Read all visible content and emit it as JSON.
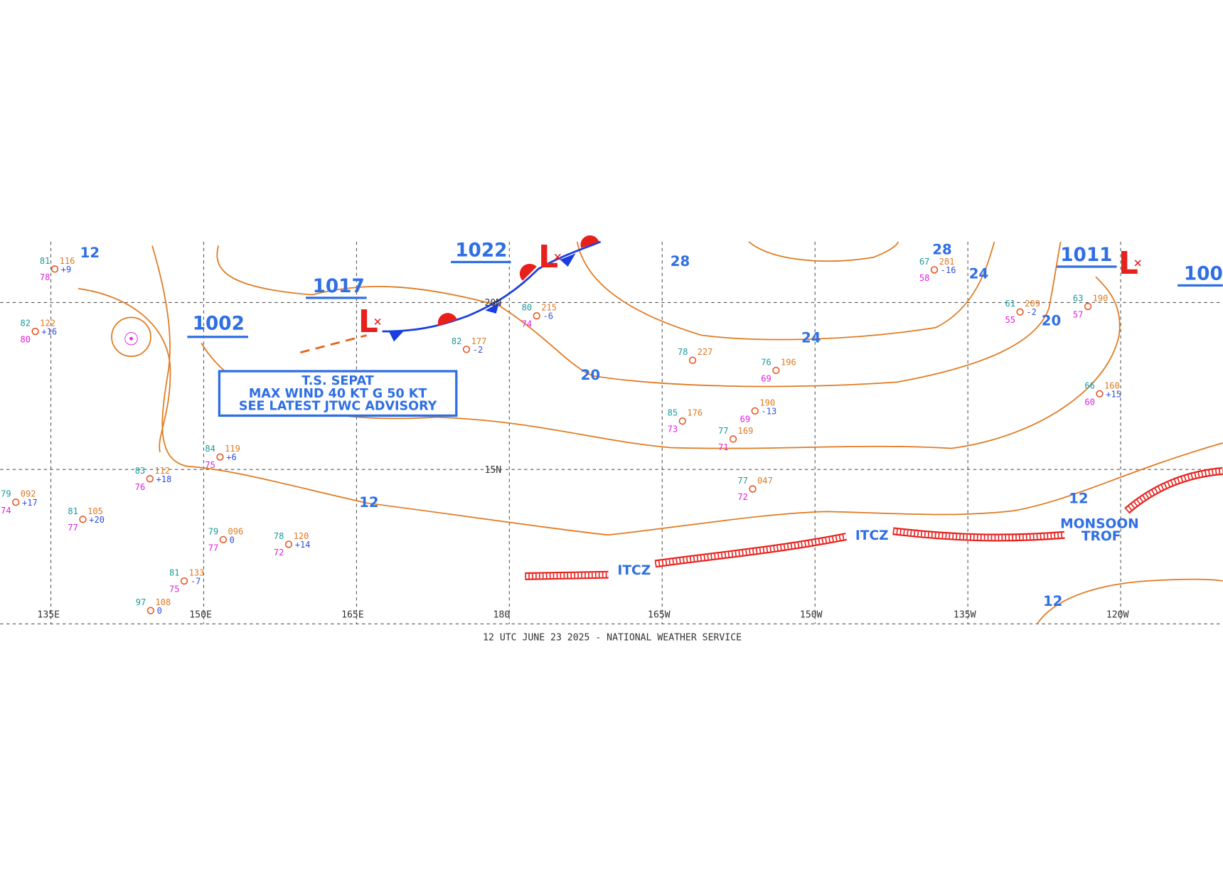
{
  "map": {
    "footer": "12 UTC JUNE 23 2025 - NATIONAL WEATHER SERVICE",
    "longitudes": [
      "135E",
      "150E",
      "165E",
      "180",
      "165W",
      "150W",
      "135W",
      "120W"
    ],
    "latitudes": [
      "20N",
      "15N"
    ],
    "pressure_labels": [
      1022,
      1017,
      1002,
      1011,
      100
    ],
    "lows": [
      "L",
      "L",
      "L"
    ],
    "isobar_labels": [
      12,
      28,
      28,
      24,
      24,
      20,
      20,
      12,
      12,
      12
    ],
    "advisory": [
      "T.S. SEPAT",
      "MAX WIND 40 KT G 50 KT",
      "SEE LATEST JTWC ADVISORY"
    ],
    "features": [
      "ITCZ",
      "ITCZ",
      "MONSOON",
      "TROF"
    ],
    "stations": [
      {
        "t": 81,
        "p": "116",
        "d": 78,
        "c": "+9"
      },
      {
        "t": 82,
        "p": "122",
        "d": 80,
        "c": "+16"
      },
      {
        "t": 80,
        "p": "215",
        "d": 74,
        "c": "-6"
      },
      {
        "t": 82,
        "p": "177",
        "c": "-2"
      },
      {
        "t": 78,
        "p": "227"
      },
      {
        "t": 76,
        "p": "196",
        "d": 69
      },
      {
        "p": "190",
        "d": 69,
        "c": "-13"
      },
      {
        "t": 85,
        "p": "176",
        "d": 73
      },
      {
        "t": 77,
        "p": "169",
        "d": 71
      },
      {
        "t": 84,
        "p": "119",
        "d": 75,
        "c": "+6"
      },
      {
        "t": 83,
        "p": "112",
        "d": 76,
        "c": "+18"
      },
      {
        "t": 79,
        "p": "092",
        "d": 74,
        "c": "+17"
      },
      {
        "t": 81,
        "p": "105",
        "d": 77,
        "c": "+20"
      },
      {
        "t": 79,
        "p": "096",
        "d": 77,
        "c": "0"
      },
      {
        "t": 78,
        "p": "120",
        "d": 72,
        "c": "+14"
      },
      {
        "t": 77,
        "p": "047",
        "d": 72
      },
      {
        "t": 67,
        "p": "281",
        "d": 58,
        "c": "-16"
      },
      {
        "t": 63,
        "p": "190",
        "d": 57
      },
      {
        "t": 66,
        "p": "160",
        "d": 60,
        "c": "+15"
      },
      {
        "t": 61,
        "p": "209",
        "d": 55,
        "c": "-2"
      },
      {
        "t": 81,
        "p": "133",
        "d": 75,
        "c": "-7"
      },
      {
        "t": 97,
        "p": "108",
        "c": "0"
      }
    ]
  }
}
